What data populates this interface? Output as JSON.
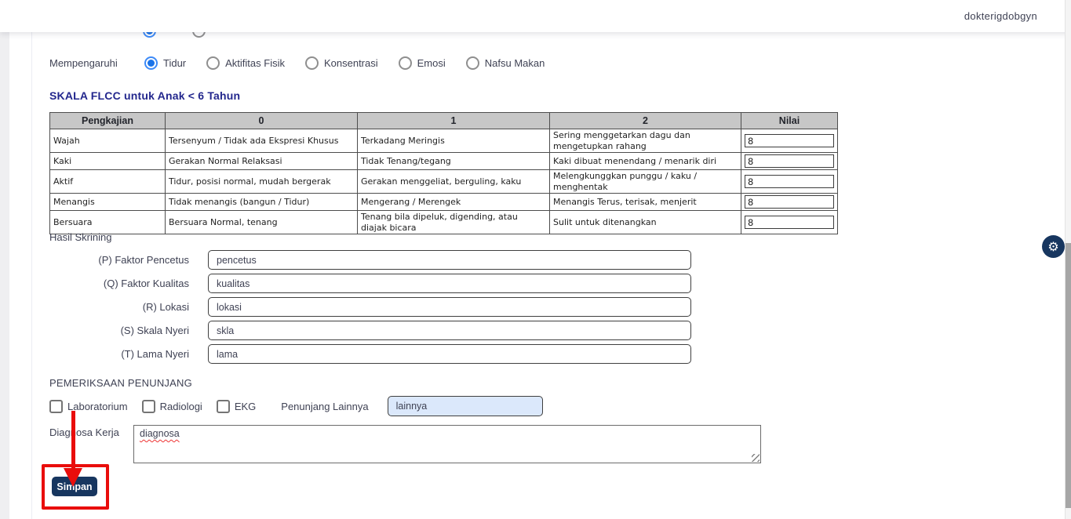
{
  "topbar": {
    "username": "dokterigdobgyn"
  },
  "mempengaruhi": {
    "label": "Mempengaruhi",
    "options": [
      {
        "label": "Tidur",
        "selected": true
      },
      {
        "label": "Aktifitas Fisik",
        "selected": false
      },
      {
        "label": "Konsentrasi",
        "selected": false
      },
      {
        "label": "Emosi",
        "selected": false
      },
      {
        "label": "Nafsu Makan",
        "selected": false
      }
    ]
  },
  "flcc_table": {
    "title": "SKALA FLCC untuk Anak < 6 Tahun",
    "columns": [
      "Pengkajian",
      "0",
      "1",
      "2",
      "Nilai"
    ],
    "rows": [
      {
        "pengkajian": "Wajah",
        "skor0": "Tersenyum / Tidak ada Ekspresi Khusus",
        "skor1": "Terkadang Meringis",
        "skor2": "Sering menggetarkan dagu dan mengetupkan rahang",
        "nilai": "8"
      },
      {
        "pengkajian": "Kaki",
        "skor0": "Gerakan Normal Relaksasi",
        "skor1": "Tidak Tenang/tegang",
        "skor2": "Kaki dibuat menendang / menarik diri",
        "nilai": "8"
      },
      {
        "pengkajian": "Aktif",
        "skor0": "Tidur, posisi normal, mudah bergerak",
        "skor1": "Gerakan menggeliat, berguling, kaku",
        "skor2": "Melengkunggkan punggu / kaku / menghentak",
        "nilai": "8"
      },
      {
        "pengkajian": "Menangis",
        "skor0": "Tidak menangis (bangun / Tidur)",
        "skor1": "Mengerang / Merengek",
        "skor2": "Menangis Terus, terisak, menjerit",
        "nilai": "8"
      },
      {
        "pengkajian": "Bersuara",
        "skor0": "Bersuara Normal, tenang",
        "skor1": "Tenang bila dipeluk, digending, atau diajak bicara",
        "skor2": "Sulit untuk ditenangkan",
        "nilai": "8"
      }
    ]
  },
  "hasil_skrining": {
    "title": "Hasil Skrining",
    "fields": [
      {
        "label": "(P) Faktor Pencetus",
        "value": "pencetus"
      },
      {
        "label": "(Q) Faktor Kualitas",
        "value": "kualitas"
      },
      {
        "label": "(R) Lokasi",
        "value": "lokasi"
      },
      {
        "label": "(S) Skala Nyeri",
        "value": "skla"
      },
      {
        "label": "(T) Lama Nyeri",
        "value": "lama"
      }
    ]
  },
  "pemeriksaan_penunjang": {
    "title": "PEMERIKSAAN PENUNJANG",
    "checkboxes": [
      {
        "label": "Laboratorium",
        "checked": false
      },
      {
        "label": "Radiologi",
        "checked": false
      },
      {
        "label": "EKG",
        "checked": false
      }
    ],
    "lainnya_label": "Penunjang Lainnya",
    "lainnya_value": "lainnya"
  },
  "diagnosa_kerja": {
    "label": "Diagnosa Kerja",
    "value": "diagnosa"
  },
  "actions": {
    "save_label": "Simpan"
  },
  "colors": {
    "navy": "#17365f",
    "heading_blue": "#23278d",
    "annotation_red": "#e90d0b",
    "radio_selected_blue": "#1a73e8",
    "lainnya_input_bg": "#dbe8fb",
    "table_header_bg": "#c7c7c7"
  }
}
